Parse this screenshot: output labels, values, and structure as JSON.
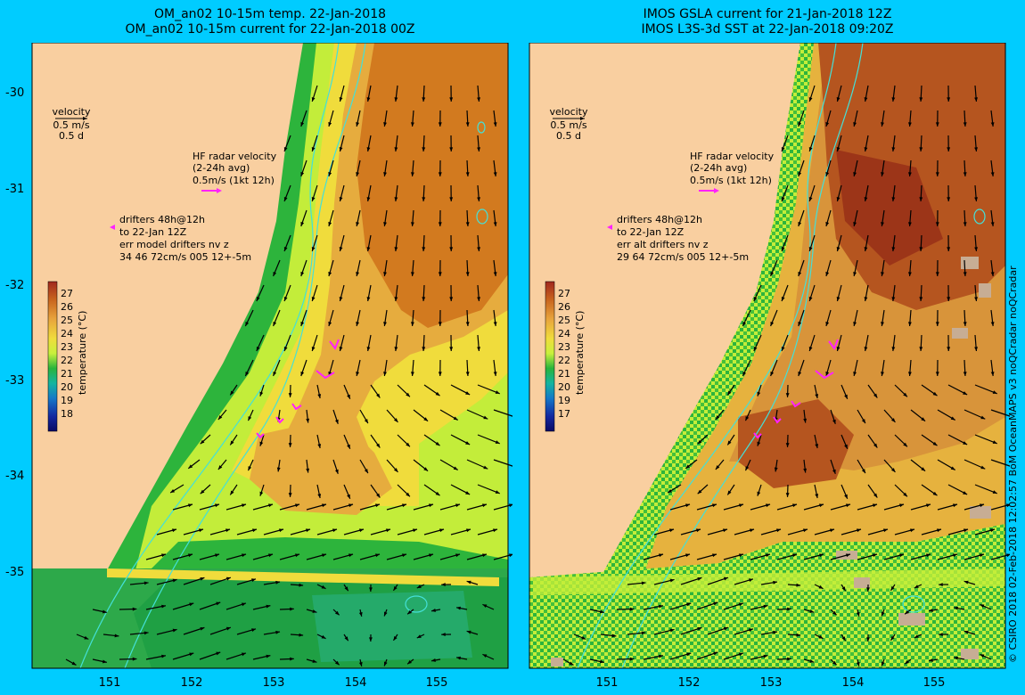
{
  "panels": [
    {
      "title_line1": "OM_an02 10-15m temp. 22-Jan-2018",
      "title_line2": "OM_an02 10-15m current for 22-Jan-2018 00Z",
      "velocity_label": "velocity",
      "velocity_scale_1": "0.5 m/s",
      "velocity_scale_2": "0.5 d",
      "hf_label_1": "HF radar velocity",
      "hf_label_2": "(2-24h avg)",
      "hf_label_3": "0.5m/s (1kt 12h)",
      "drifter_1": "drifters 48h@12h",
      "drifter_2": "to 22-Jan 12Z",
      "drifter_3": "err model drifters nv z",
      "drifter_4": "34 46 72cm/s 005 12+-5m",
      "colorbar_ticks": [
        "27",
        "26",
        "25",
        "24",
        "23",
        "22",
        "21",
        "20",
        "19",
        "18"
      ],
      "colorbar_label": "temperature (°C)",
      "lat_ticks": [
        "-30",
        "-31",
        "-32",
        "-33",
        "-34",
        "-35"
      ],
      "lon_ticks": [
        "151",
        "152",
        "153",
        "154",
        "155"
      ]
    },
    {
      "title_line1": "IMOS GSLA current for 21-Jan-2018 12Z",
      "title_line2": "IMOS L3S-3d SST at 22-Jan-2018 09:20Z",
      "velocity_label": "velocity",
      "velocity_scale_1": "0.5 m/s",
      "velocity_scale_2": "0.5 d",
      "hf_label_1": "HF radar velocity",
      "hf_label_2": "(2-24h avg)",
      "hf_label_3": "0.5m/s (1kt 12h)",
      "drifter_1": "drifters 48h@12h",
      "drifter_2": "to 22-Jan 12Z",
      "drifter_3": "err alt drifters nv z",
      "drifter_4": "29 64 72cm/s 005 12+-5m",
      "colorbar_ticks": [
        "27",
        "26",
        "25",
        "24",
        "23",
        "22",
        "21",
        "20",
        "19",
        "17"
      ],
      "colorbar_label": "temperature (°C)",
      "lat_ticks": [],
      "lon_ticks": [
        "151",
        "152",
        "153",
        "154",
        "155"
      ]
    }
  ],
  "credit": "© CSIRO 2018  02-Feb-2018 12:02:57 BoM OceanMAPS v3 noQCradar noQCradar",
  "colors": {
    "background": "#00ccff",
    "land": "#f9cfa0",
    "contour": "#44e0d8",
    "hf_arrow": "#ff22ff",
    "missing": "#c7ad94"
  }
}
